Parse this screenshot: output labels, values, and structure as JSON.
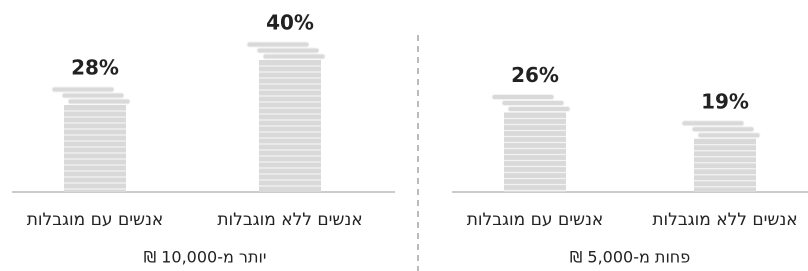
{
  "chart_data": [
    {
      "type": "bar",
      "title": "פחות מ-5,000 ₪",
      "categories": [
        "אנשים ללא מוגבלות",
        "אנשים עם מוגבלות"
      ],
      "values": [
        19,
        26
      ],
      "value_labels": [
        "19%",
        "26%"
      ],
      "color": "#d9d9d9"
    },
    {
      "type": "bar",
      "title": "יותר מ-10,000 ₪",
      "categories": [
        "אנשים ללא מוגבלות",
        "אנשים עם מוגבלות"
      ],
      "values": [
        40,
        28
      ],
      "value_labels": [
        "40%",
        "28%"
      ],
      "color": "#d9d9d9"
    }
  ]
}
